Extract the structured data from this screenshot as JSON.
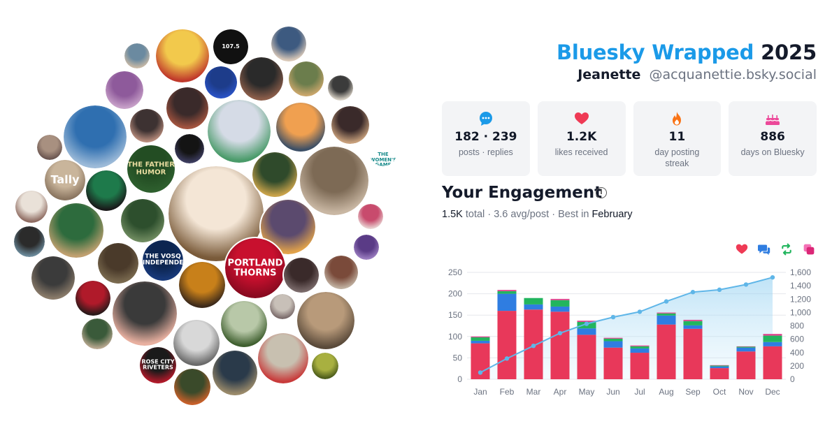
{
  "header": {
    "brand": "Bluesky Wrapped",
    "year": "2025",
    "name": "Jeanette",
    "handle": "@acquanettie.bsky.social"
  },
  "stats": [
    {
      "icon": "chat-bubble-icon",
      "value": "182 · 239",
      "label": "posts · replies",
      "color": "#1b9ae8"
    },
    {
      "icon": "heart-icon",
      "value": "1.2K",
      "label": "likes received",
      "color": "#ef3a55"
    },
    {
      "icon": "flame-icon",
      "value": "11",
      "label": "day posting streak",
      "color": "#f97316"
    },
    {
      "icon": "cake-icon",
      "value": "886",
      "label": "days on Bluesky",
      "color": "#ec4899"
    }
  ],
  "engagement": {
    "title": "Your Engagement",
    "total": "1.5K",
    "total_label": "total",
    "avg": "3.6 avg/post",
    "best_prefix": "Best in",
    "best_month": "February",
    "legend": [
      {
        "icon": "heart-icon",
        "color": "#ef3a55",
        "label": "likes"
      },
      {
        "icon": "reply-icon",
        "color": "#2f7de1",
        "label": "replies"
      },
      {
        "icon": "repost-icon",
        "color": "#22b55e",
        "label": "reposts"
      },
      {
        "icon": "quote-icon",
        "color": "#e0458f",
        "label": "quotes"
      }
    ]
  },
  "chart_data": {
    "type": "bar",
    "categories": [
      "Jan",
      "Feb",
      "Mar",
      "Apr",
      "May",
      "Jun",
      "Jul",
      "Aug",
      "Sep",
      "Oct",
      "Nov",
      "Dec"
    ],
    "series": [
      {
        "color": "#e8385a",
        "values": [
          84,
          160,
          163,
          158,
          104,
          74,
          62,
          128,
          118,
          26,
          65,
          77
        ]
      },
      {
        "color": "#2f7de1",
        "values": [
          6,
          40,
          12,
          12,
          15,
          15,
          10,
          21,
          8,
          4,
          9,
          10
        ]
      },
      {
        "color": "#22b55e",
        "values": [
          8,
          6,
          15,
          15,
          15,
          6,
          5,
          5,
          10,
          2,
          2,
          15
        ]
      },
      {
        "color": "#e0458f",
        "values": [
          2,
          3,
          0,
          3,
          3,
          2,
          2,
          2,
          3,
          1,
          1,
          4
        ]
      }
    ],
    "cumulative": {
      "color": "#5fb6e8",
      "values": [
        100,
        310,
        500,
        690,
        830,
        930,
        1010,
        1165,
        1305,
        1340,
        1418,
        1525
      ]
    },
    "ylim_left": [
      0,
      250
    ],
    "yticks_left": [
      "0",
      "50",
      "100",
      "150",
      "200",
      "250"
    ],
    "ylim_right": [
      0,
      1600
    ],
    "yticks_right": [
      "0",
      "200",
      "400",
      "600",
      "800",
      "1,000",
      "1,200",
      "1,400",
      "1,600"
    ],
    "grid": true
  },
  "bubbles": {
    "texts": {
      "womens_game": "THE WOMEN'S GAME",
      "tally": "Tally",
      "father_humor": "THE FATHER HUMOR",
      "vosq": "THE VOSQ INDEPENDENT",
      "portland_thorns": "PORTLAND THORNS",
      "rose_city_riveters": "ROSE CITY RIVETERS",
      "badge_1075": "107.5"
    }
  }
}
